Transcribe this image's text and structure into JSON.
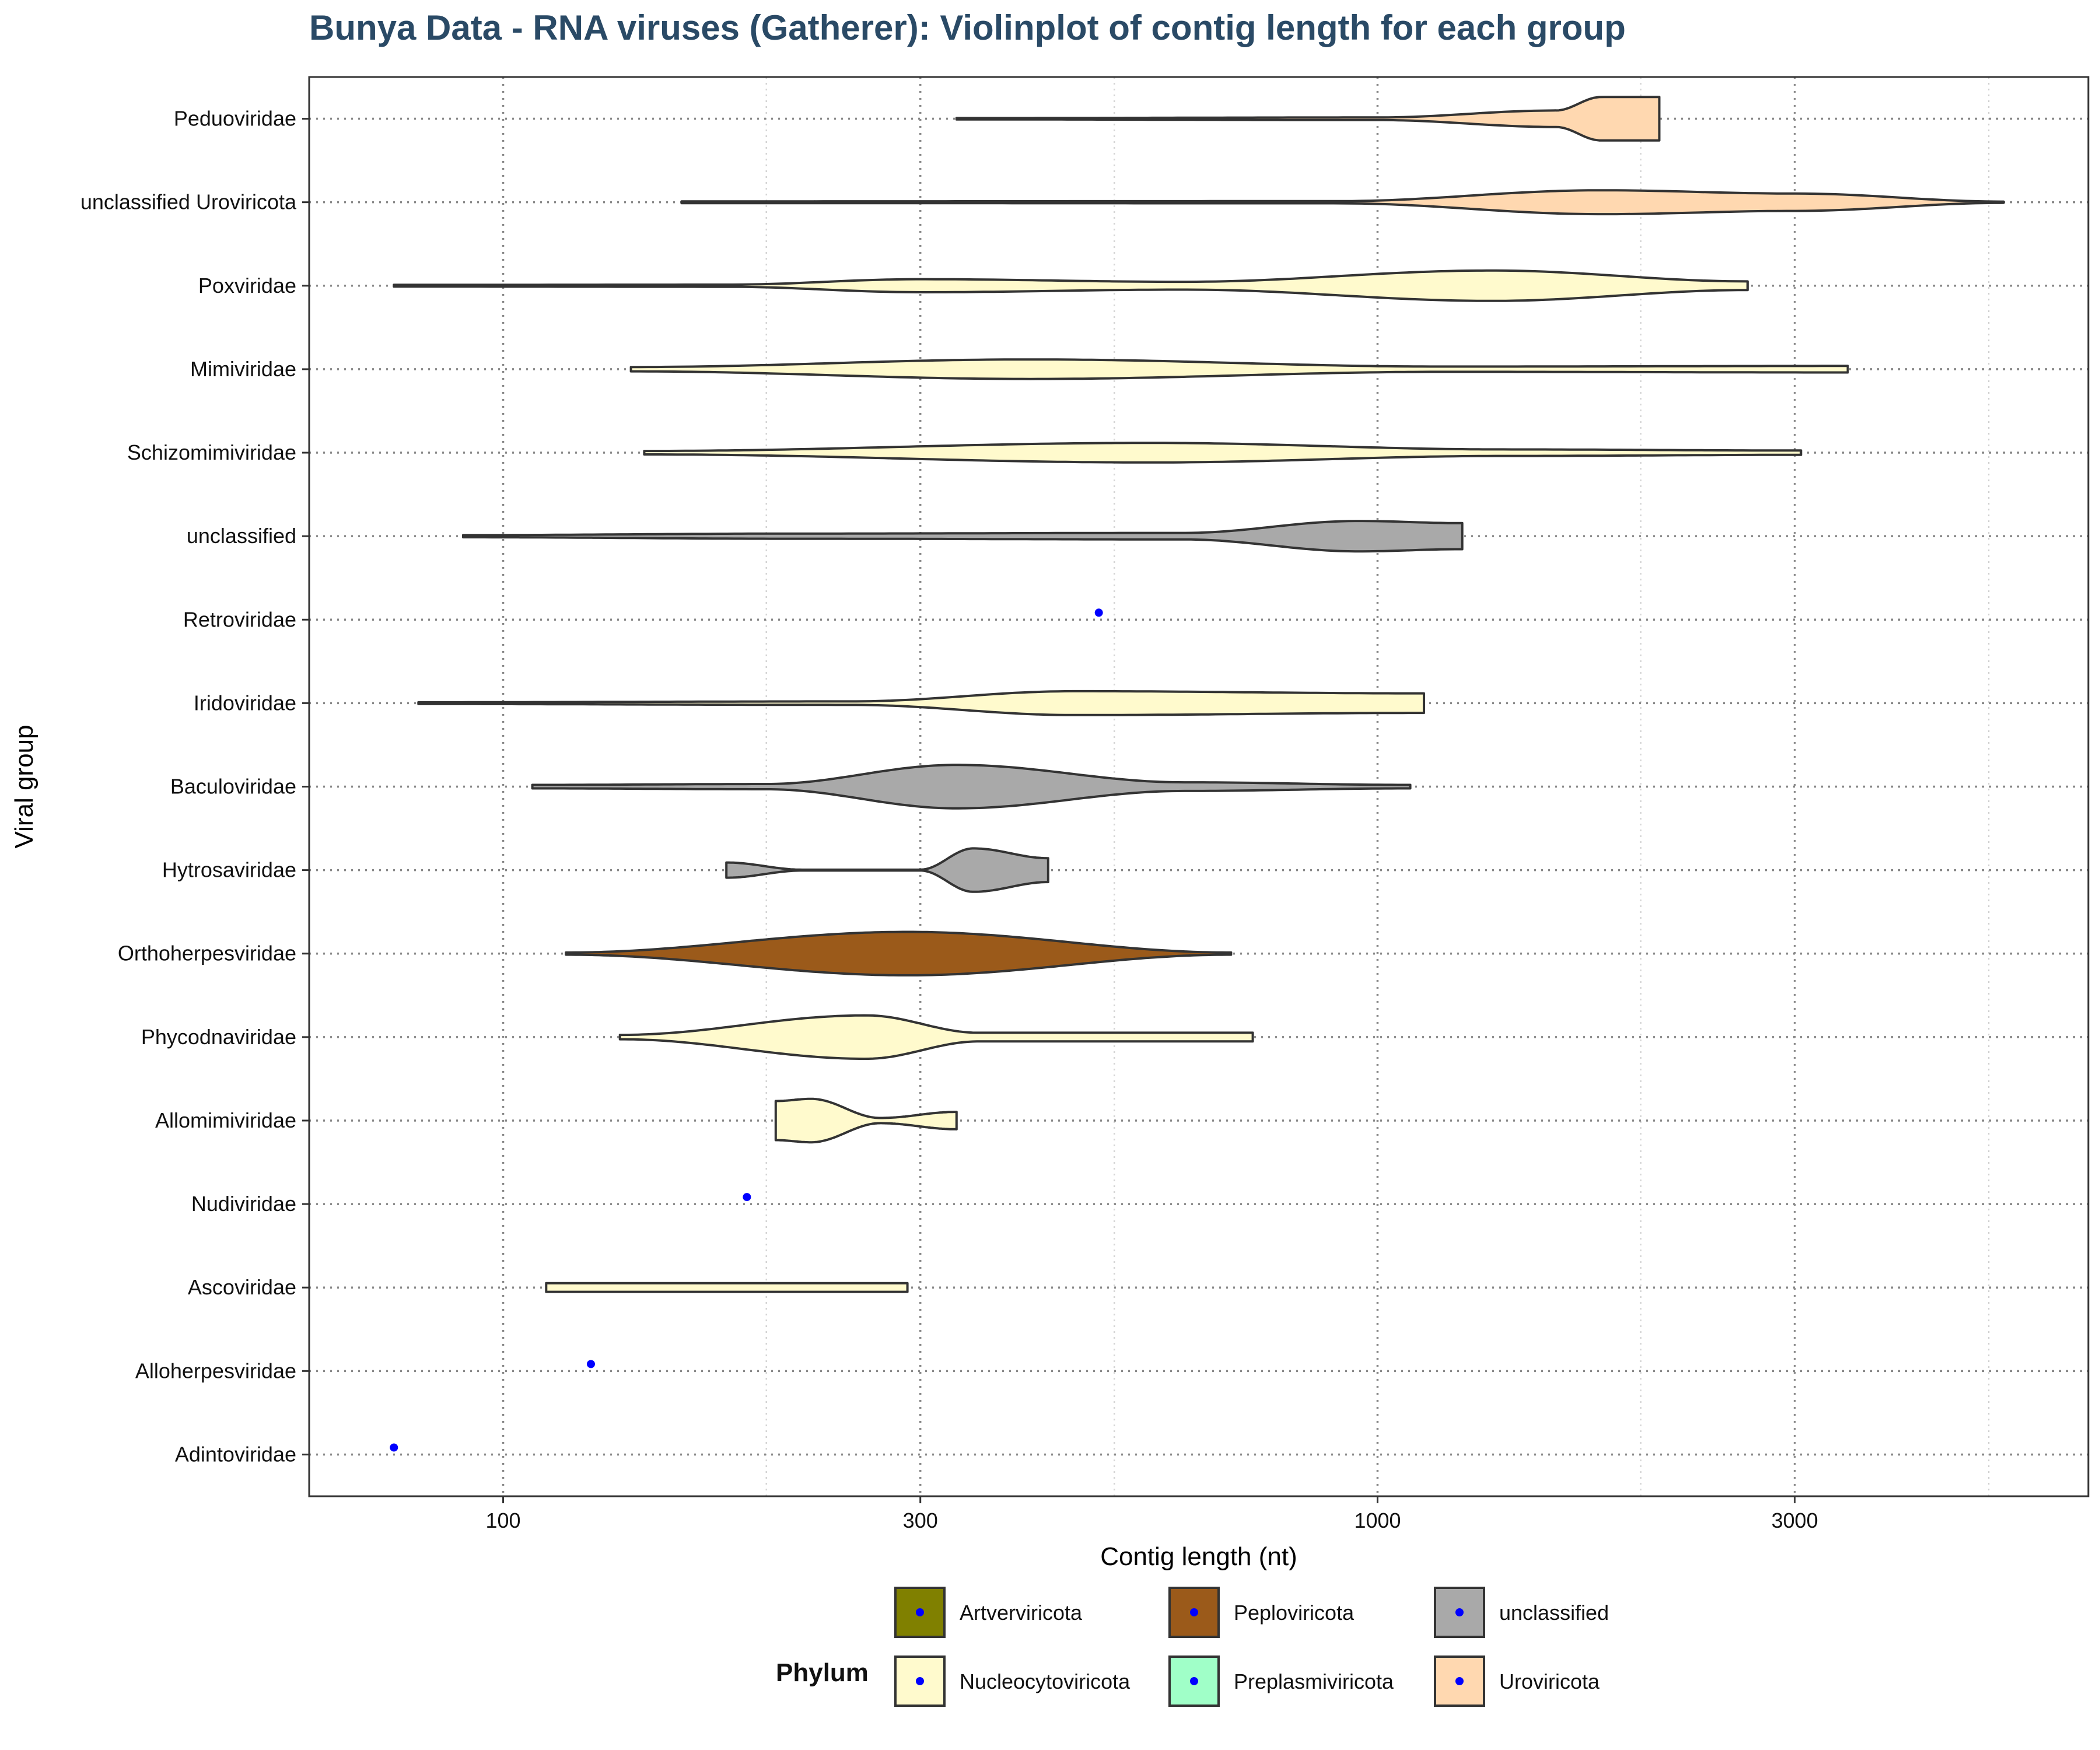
{
  "chart_data": {
    "type": "violin",
    "title": "Bunya Data - RNA viruses (Gatherer): Violinplot of contig length for each group",
    "xlabel": "Contig length (nt)",
    "ylabel": "Viral group",
    "x_scale": "log10",
    "xlim": [
      60,
      6500
    ],
    "x_ticks": [
      100,
      300,
      1000,
      3000
    ],
    "x_tick_labels": [
      "100",
      "300",
      "1000",
      "3000"
    ],
    "grid": true,
    "legend": {
      "title": "Phylum",
      "position": "bottom",
      "items": [
        {
          "label": "Artverviricota",
          "color": "#808000"
        },
        {
          "label": "Peploviricota",
          "color": "#9b5a1a"
        },
        {
          "label": "unclassified",
          "color": "#a9a9a9"
        },
        {
          "label": "Nucleocytoviricota",
          "color": "#fffacd"
        },
        {
          "label": "Preplasmiviricota",
          "color": "#a0ffc8"
        },
        {
          "label": "Uroviricota",
          "color": "#ffd8b0"
        }
      ]
    },
    "point_color": "#0000ff",
    "groups": [
      {
        "label": "Peduoviridae",
        "phylum": "Uroviricota",
        "min": 330,
        "max": 2100,
        "profile": [
          [
            330,
            0.03
          ],
          [
            1000,
            0.06
          ],
          [
            1600,
            0.38
          ],
          [
            1800,
            1.0
          ],
          [
            2100,
            1.0
          ]
        ]
      },
      {
        "label": "unclassified Uroviricota",
        "phylum": "Uroviricota",
        "min": 160,
        "max": 5200,
        "profile": [
          [
            160,
            0.04
          ],
          [
            900,
            0.05
          ],
          [
            1800,
            0.55
          ],
          [
            3000,
            0.4
          ],
          [
            5200,
            0.03
          ]
        ]
      },
      {
        "label": "Poxviridae",
        "phylum": "Nucleocytoviricota",
        "min": 75,
        "max": 2650,
        "profile": [
          [
            75,
            0.04
          ],
          [
            180,
            0.05
          ],
          [
            300,
            0.3
          ],
          [
            600,
            0.18
          ],
          [
            1350,
            0.7
          ],
          [
            2650,
            0.2
          ]
        ]
      },
      {
        "label": "Mimiviridae",
        "phylum": "Nucleocytoviricota",
        "min": 140,
        "max": 3450,
        "profile": [
          [
            140,
            0.1
          ],
          [
            400,
            0.45
          ],
          [
            1200,
            0.12
          ],
          [
            3450,
            0.15
          ]
        ]
      },
      {
        "label": "Schizomimiviridae",
        "phylum": "Nucleocytoviricota",
        "min": 145,
        "max": 3050,
        "profile": [
          [
            145,
            0.08
          ],
          [
            550,
            0.45
          ],
          [
            1400,
            0.15
          ],
          [
            3050,
            0.1
          ]
        ]
      },
      {
        "label": "unclassified",
        "phylum": "unclassified",
        "min": 90,
        "max": 1250,
        "profile": [
          [
            90,
            0.05
          ],
          [
            220,
            0.12
          ],
          [
            600,
            0.15
          ],
          [
            950,
            0.7
          ],
          [
            1250,
            0.6
          ]
        ]
      },
      {
        "label": "Retroviridae",
        "phylum": "unclassified",
        "point": 480
      },
      {
        "label": "Iridoviridae",
        "phylum": "Nucleocytoviricota",
        "min": 80,
        "max": 1130,
        "profile": [
          [
            80,
            0.04
          ],
          [
            250,
            0.08
          ],
          [
            450,
            0.55
          ],
          [
            1130,
            0.45
          ]
        ]
      },
      {
        "label": "Baculoviridae",
        "phylum": "unclassified",
        "min": 108,
        "max": 1090,
        "profile": [
          [
            108,
            0.08
          ],
          [
            200,
            0.12
          ],
          [
            330,
            1.0
          ],
          [
            600,
            0.2
          ],
          [
            1090,
            0.08
          ]
        ]
      },
      {
        "label": "Hytrosaviridae",
        "phylum": "unclassified",
        "min": 180,
        "max": 420,
        "profile": [
          [
            180,
            0.35
          ],
          [
            220,
            0.02
          ],
          [
            300,
            0.02
          ],
          [
            345,
            1.0
          ],
          [
            420,
            0.55
          ]
        ]
      },
      {
        "label": "Orthoherpesviridae",
        "phylum": "Peploviricota",
        "min": 118,
        "max": 680,
        "profile": [
          [
            118,
            0.05
          ],
          [
            290,
            1.0
          ],
          [
            680,
            0.05
          ]
        ]
      },
      {
        "label": "Phycodnaviridae",
        "phylum": "Nucleocytoviricota",
        "min": 136,
        "max": 720,
        "profile": [
          [
            136,
            0.1
          ],
          [
            260,
            1.0
          ],
          [
            350,
            0.2
          ],
          [
            720,
            0.2
          ]
        ]
      },
      {
        "label": "Allomimiviridae",
        "phylum": "Nucleocytoviricota",
        "min": 205,
        "max": 330,
        "profile": [
          [
            205,
            0.9
          ],
          [
            225,
            1.0
          ],
          [
            270,
            0.12
          ],
          [
            330,
            0.4
          ]
        ]
      },
      {
        "label": "Nudiviridae",
        "phylum": "Nucleocytoviricota",
        "point": 190
      },
      {
        "label": "Ascoviridae",
        "phylum": "Nucleocytoviricota",
        "min": 112,
        "max": 290,
        "profile": [
          [
            112,
            0.2
          ],
          [
            290,
            0.2
          ]
        ]
      },
      {
        "label": "Alloherpesviridae",
        "phylum": "Peploviricota",
        "point": 126
      },
      {
        "label": "Adintoviridae",
        "phylum": "Preplasmiviricota",
        "point": 75
      }
    ]
  }
}
